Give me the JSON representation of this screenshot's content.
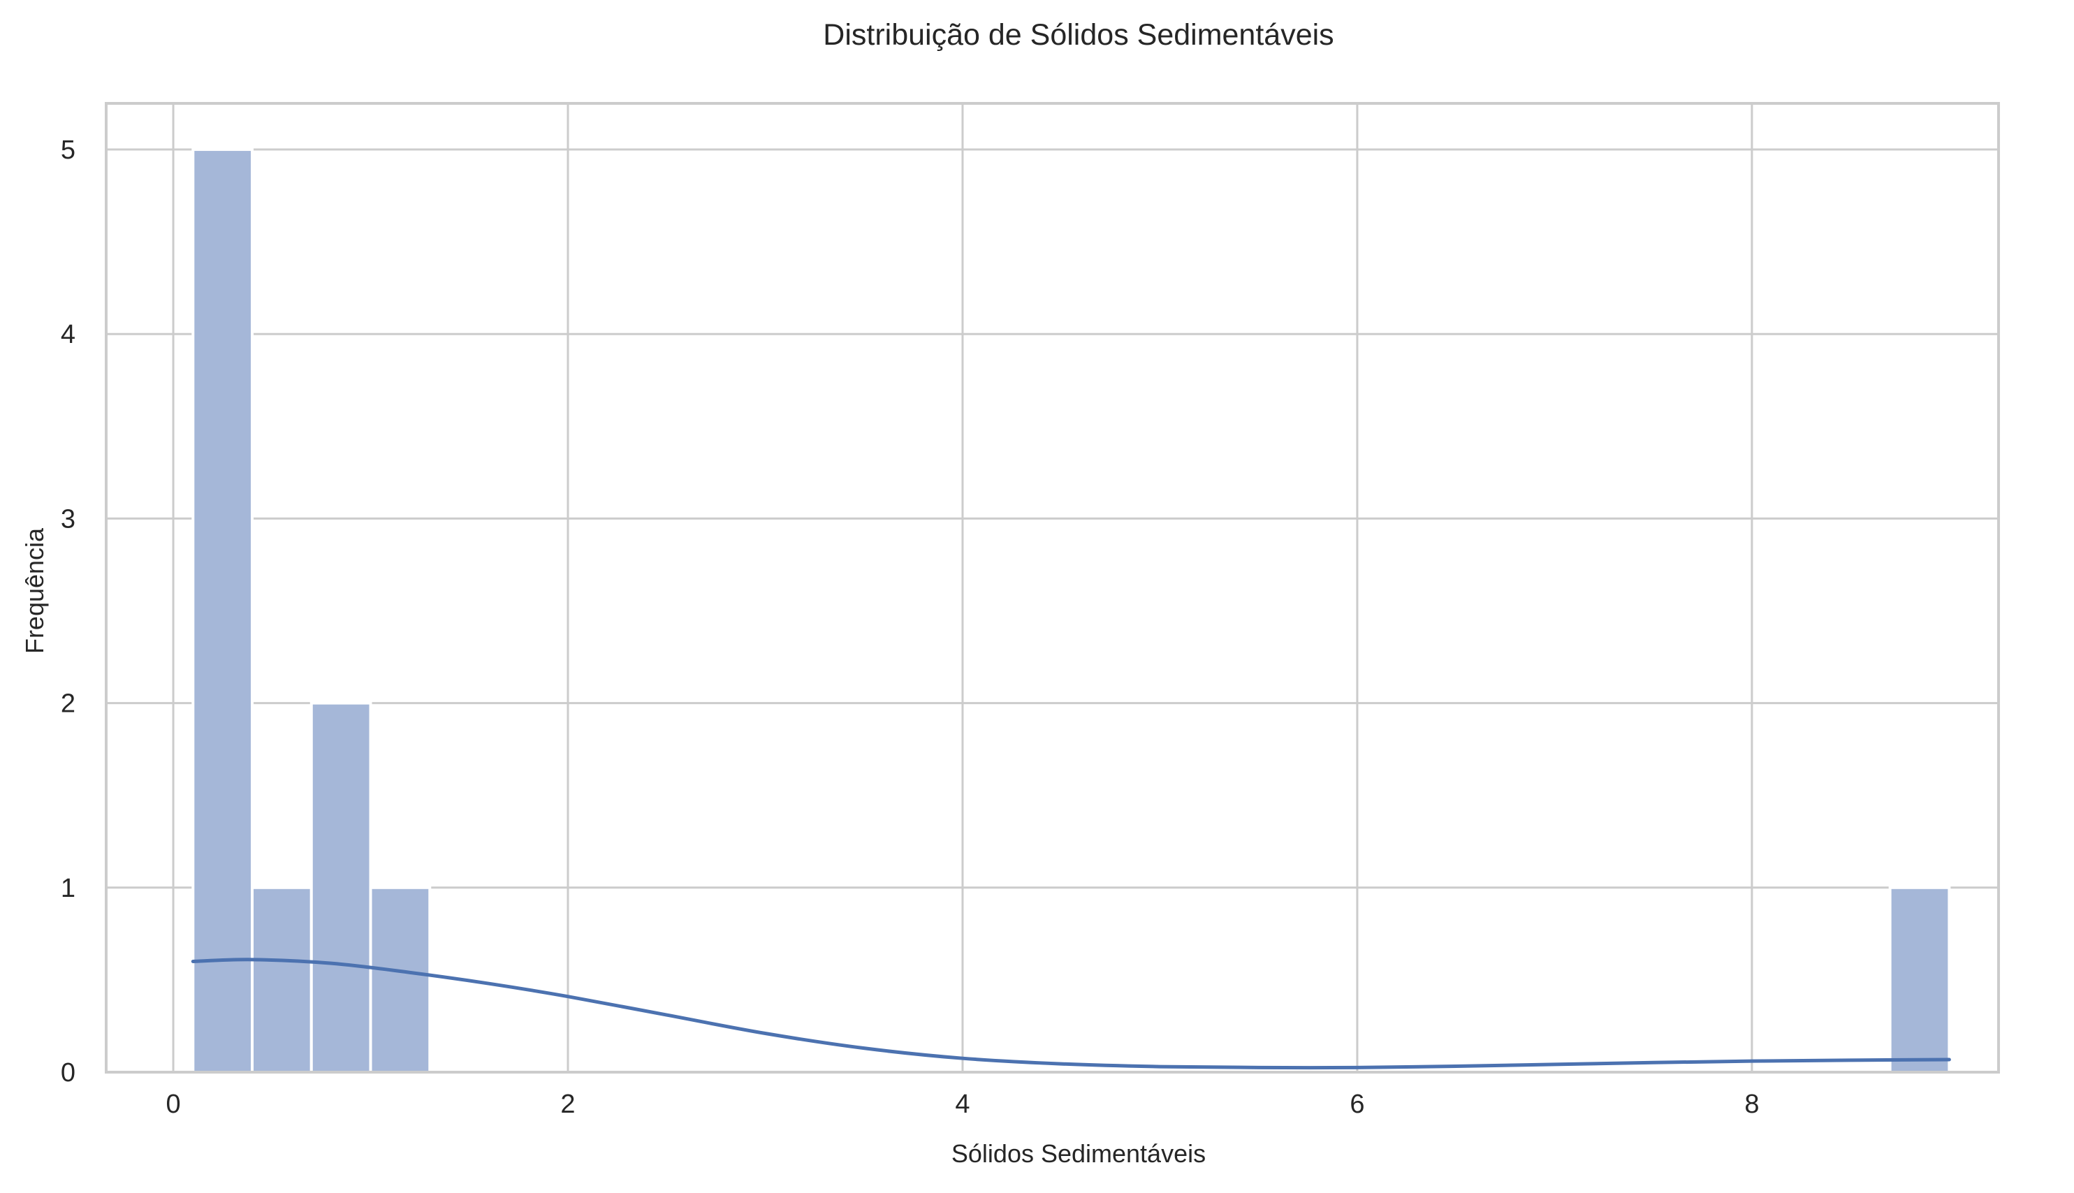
{
  "chart_data": {
    "type": "bar",
    "title": "Distribuição de Sólidos Sedimentáveis",
    "xlabel": "Sólidos Sedimentáveis",
    "ylabel": "Frequência",
    "xlim": [
      -0.34,
      9.25
    ],
    "ylim": [
      0,
      5.25
    ],
    "xticks": [
      0,
      2,
      4,
      6,
      8
    ],
    "yticks": [
      0,
      1,
      2,
      3,
      4,
      5
    ],
    "grid": true,
    "bins": [
      {
        "x0": 0.1,
        "x1": 0.4,
        "count": 5
      },
      {
        "x0": 0.4,
        "x1": 0.7,
        "count": 1
      },
      {
        "x0": 0.7,
        "x1": 1.0,
        "count": 2
      },
      {
        "x0": 1.0,
        "x1": 1.3,
        "count": 1
      },
      {
        "x0": 8.7,
        "x1": 9.0,
        "count": 1
      }
    ],
    "kde": {
      "x": [
        0.1,
        0.4,
        0.8,
        1.2,
        1.6,
        2.0,
        2.5,
        3.0,
        3.5,
        4.0,
        4.5,
        5.0,
        5.5,
        6.0,
        6.5,
        7.0,
        7.5,
        8.0,
        8.5,
        9.0
      ],
      "y": [
        0.6,
        0.61,
        0.59,
        0.54,
        0.48,
        0.41,
        0.31,
        0.21,
        0.13,
        0.075,
        0.045,
        0.03,
        0.025,
        0.025,
        0.032,
        0.042,
        0.052,
        0.06,
        0.065,
        0.068
      ]
    },
    "colors": {
      "bar": "#a5b7d8",
      "kde": "#4c72b0",
      "grid": "#cccccc",
      "spine": "#cccccc"
    }
  }
}
